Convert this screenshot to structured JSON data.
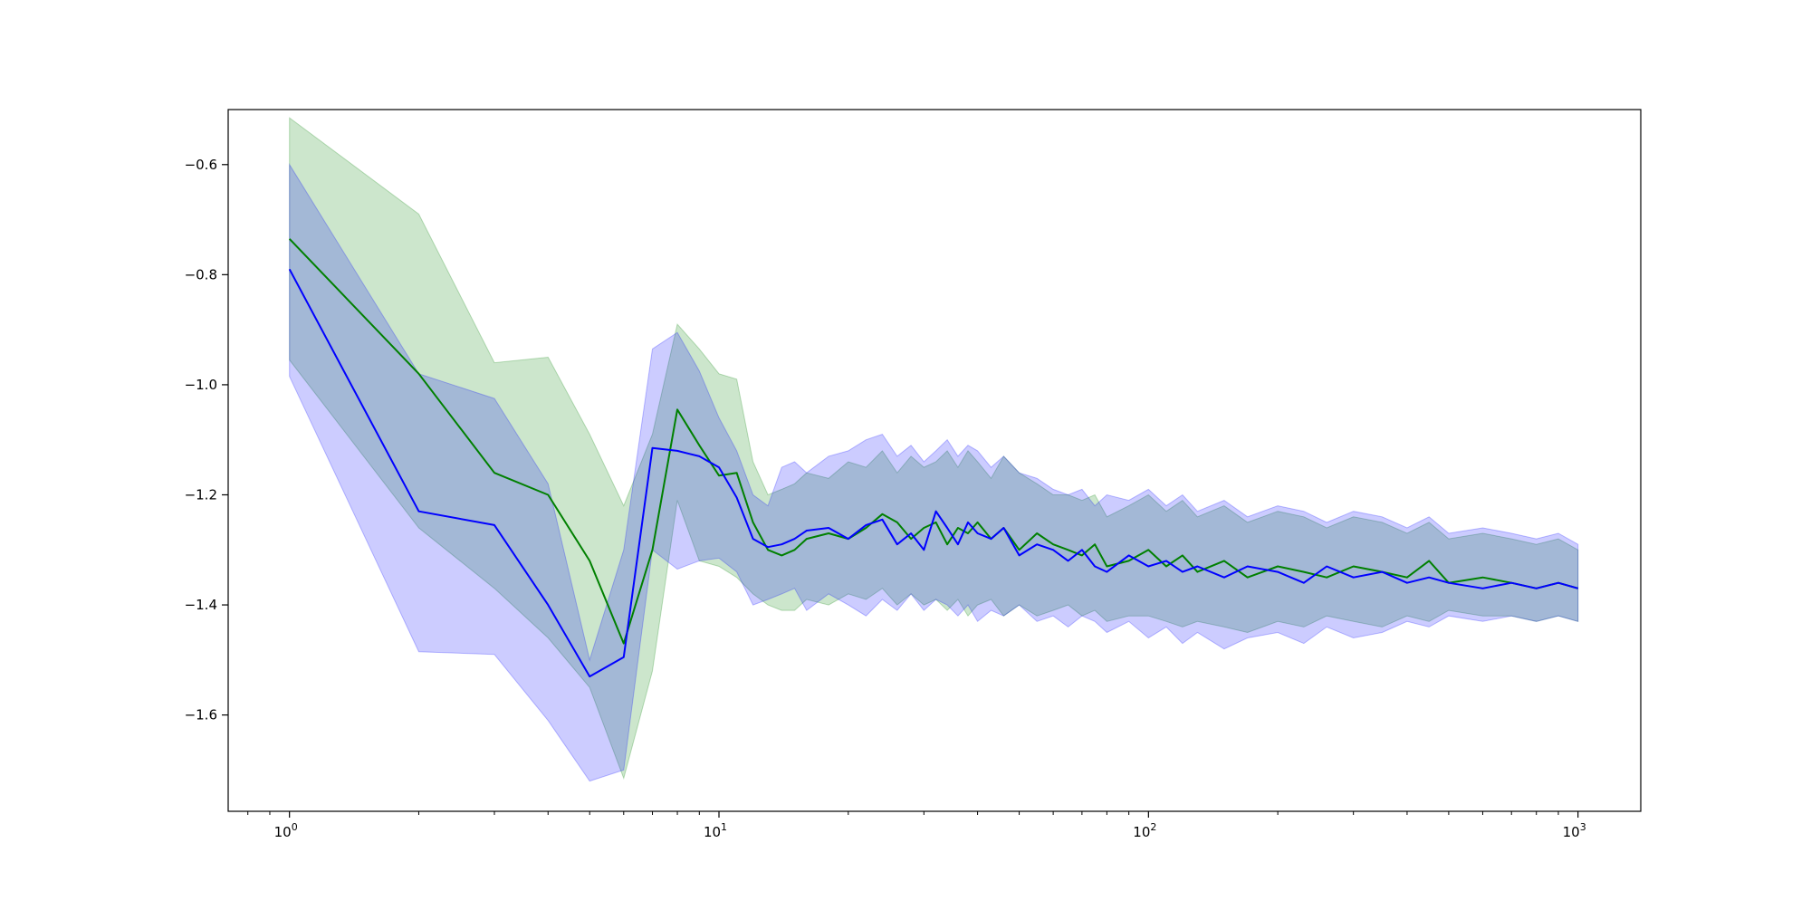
{
  "chart_data": {
    "type": "line",
    "title": "",
    "xlabel": "",
    "ylabel": "",
    "x_scale": "log",
    "xlim": [
      0.72,
      1400
    ],
    "ylim": [
      -1.775,
      -0.5
    ],
    "grid": false,
    "legend": "none",
    "x_tick_labels": [
      {
        "value": 1,
        "mantissa": "10",
        "exponent": "0"
      },
      {
        "value": 10,
        "mantissa": "10",
        "exponent": "1"
      },
      {
        "value": 100,
        "mantissa": "10",
        "exponent": "2"
      },
      {
        "value": 1000,
        "mantissa": "10",
        "exponent": "3"
      }
    ],
    "y_tick_labels": [
      {
        "value": -0.6,
        "label": "−0.6"
      },
      {
        "value": -0.8,
        "label": "−0.8"
      },
      {
        "value": -1.0,
        "label": "−1.0"
      },
      {
        "value": -1.2,
        "label": "−1.2"
      },
      {
        "value": -1.4,
        "label": "−1.4"
      },
      {
        "value": -1.6,
        "label": "−1.6"
      }
    ],
    "series": [
      {
        "color": "#008000",
        "band_color": "#008000",
        "x": [
          1,
          2,
          3,
          4,
          5,
          6,
          7,
          8,
          9,
          10,
          11,
          12,
          13,
          14,
          15,
          16,
          18,
          20,
          22,
          24,
          26,
          28,
          30,
          32,
          34,
          36,
          38,
          40,
          43,
          46,
          50,
          55,
          60,
          65,
          70,
          75,
          80,
          90,
          100,
          110,
          120,
          130,
          150,
          170,
          200,
          230,
          260,
          300,
          350,
          400,
          450,
          500,
          600,
          700,
          800,
          900,
          1000
        ],
        "values": [
          -0.735,
          -0.98,
          -1.16,
          -1.2,
          -1.32,
          -1.47,
          -1.3,
          -1.045,
          -1.11,
          -1.165,
          -1.16,
          -1.25,
          -1.3,
          -1.31,
          -1.3,
          -1.28,
          -1.27,
          -1.28,
          -1.26,
          -1.235,
          -1.25,
          -1.28,
          -1.26,
          -1.25,
          -1.29,
          -1.26,
          -1.27,
          -1.25,
          -1.28,
          -1.26,
          -1.3,
          -1.27,
          -1.29,
          -1.3,
          -1.31,
          -1.29,
          -1.33,
          -1.32,
          -1.3,
          -1.33,
          -1.31,
          -1.34,
          -1.32,
          -1.35,
          -1.33,
          -1.34,
          -1.35,
          -1.33,
          -1.34,
          -1.35,
          -1.32,
          -1.36,
          -1.35,
          -1.36,
          -1.37,
          -1.36,
          -1.37
        ],
        "lower": [
          -0.955,
          -1.26,
          -1.37,
          -1.46,
          -1.55,
          -1.715,
          -1.52,
          -1.21,
          -1.32,
          -1.33,
          -1.35,
          -1.38,
          -1.4,
          -1.41,
          -1.41,
          -1.39,
          -1.4,
          -1.38,
          -1.39,
          -1.37,
          -1.4,
          -1.38,
          -1.4,
          -1.39,
          -1.41,
          -1.39,
          -1.42,
          -1.4,
          -1.39,
          -1.42,
          -1.4,
          -1.42,
          -1.41,
          -1.4,
          -1.42,
          -1.41,
          -1.43,
          -1.42,
          -1.42,
          -1.43,
          -1.44,
          -1.43,
          -1.44,
          -1.45,
          -1.43,
          -1.44,
          -1.42,
          -1.43,
          -1.44,
          -1.42,
          -1.43,
          -1.41,
          -1.42,
          -1.42,
          -1.43,
          -1.42,
          -1.43
        ],
        "upper": [
          -0.515,
          -0.69,
          -0.96,
          -0.95,
          -1.09,
          -1.22,
          -1.09,
          -0.89,
          -0.935,
          -0.98,
          -0.99,
          -1.14,
          -1.2,
          -1.19,
          -1.18,
          -1.16,
          -1.17,
          -1.14,
          -1.15,
          -1.12,
          -1.16,
          -1.13,
          -1.15,
          -1.14,
          -1.12,
          -1.15,
          -1.12,
          -1.14,
          -1.17,
          -1.13,
          -1.16,
          -1.18,
          -1.2,
          -1.2,
          -1.21,
          -1.2,
          -1.24,
          -1.22,
          -1.2,
          -1.23,
          -1.21,
          -1.24,
          -1.22,
          -1.25,
          -1.23,
          -1.24,
          -1.26,
          -1.24,
          -1.25,
          -1.27,
          -1.25,
          -1.28,
          -1.27,
          -1.28,
          -1.29,
          -1.28,
          -1.3
        ]
      },
      {
        "color": "#0000ff",
        "band_color": "#0000ff",
        "x": [
          1,
          2,
          3,
          4,
          5,
          6,
          7,
          8,
          9,
          10,
          11,
          12,
          13,
          14,
          15,
          16,
          18,
          20,
          22,
          24,
          26,
          28,
          30,
          32,
          34,
          36,
          38,
          40,
          43,
          46,
          50,
          55,
          60,
          65,
          70,
          75,
          80,
          90,
          100,
          110,
          120,
          130,
          150,
          170,
          200,
          230,
          260,
          300,
          350,
          400,
          450,
          500,
          600,
          700,
          800,
          900,
          1000
        ],
        "values": [
          -0.79,
          -1.23,
          -1.255,
          -1.4,
          -1.53,
          -1.495,
          -1.115,
          -1.12,
          -1.13,
          -1.15,
          -1.205,
          -1.28,
          -1.295,
          -1.29,
          -1.28,
          -1.265,
          -1.26,
          -1.28,
          -1.255,
          -1.245,
          -1.29,
          -1.27,
          -1.3,
          -1.23,
          -1.26,
          -1.29,
          -1.25,
          -1.27,
          -1.28,
          -1.26,
          -1.31,
          -1.29,
          -1.3,
          -1.32,
          -1.3,
          -1.33,
          -1.34,
          -1.31,
          -1.33,
          -1.32,
          -1.34,
          -1.33,
          -1.35,
          -1.33,
          -1.34,
          -1.36,
          -1.33,
          -1.35,
          -1.34,
          -1.36,
          -1.35,
          -1.36,
          -1.37,
          -1.36,
          -1.37,
          -1.36,
          -1.37
        ],
        "lower": [
          -0.985,
          -1.485,
          -1.49,
          -1.61,
          -1.72,
          -1.7,
          -1.3,
          -1.335,
          -1.32,
          -1.315,
          -1.34,
          -1.4,
          -1.39,
          -1.38,
          -1.37,
          -1.41,
          -1.38,
          -1.4,
          -1.42,
          -1.39,
          -1.41,
          -1.38,
          -1.41,
          -1.39,
          -1.4,
          -1.42,
          -1.4,
          -1.43,
          -1.41,
          -1.42,
          -1.4,
          -1.43,
          -1.42,
          -1.44,
          -1.42,
          -1.43,
          -1.45,
          -1.43,
          -1.46,
          -1.44,
          -1.47,
          -1.45,
          -1.48,
          -1.46,
          -1.45,
          -1.47,
          -1.44,
          -1.46,
          -1.45,
          -1.43,
          -1.44,
          -1.42,
          -1.43,
          -1.42,
          -1.43,
          -1.42,
          -1.43
        ],
        "upper": [
          -0.6,
          -0.98,
          -1.025,
          -1.18,
          -1.5,
          -1.3,
          -0.935,
          -0.905,
          -0.975,
          -1.06,
          -1.12,
          -1.2,
          -1.22,
          -1.15,
          -1.14,
          -1.16,
          -1.13,
          -1.12,
          -1.1,
          -1.09,
          -1.13,
          -1.11,
          -1.14,
          -1.12,
          -1.1,
          -1.13,
          -1.11,
          -1.12,
          -1.15,
          -1.13,
          -1.16,
          -1.17,
          -1.19,
          -1.2,
          -1.19,
          -1.22,
          -1.2,
          -1.21,
          -1.19,
          -1.22,
          -1.2,
          -1.23,
          -1.21,
          -1.24,
          -1.22,
          -1.23,
          -1.25,
          -1.23,
          -1.24,
          -1.26,
          -1.24,
          -1.27,
          -1.26,
          -1.27,
          -1.28,
          -1.27,
          -1.29
        ]
      }
    ]
  }
}
